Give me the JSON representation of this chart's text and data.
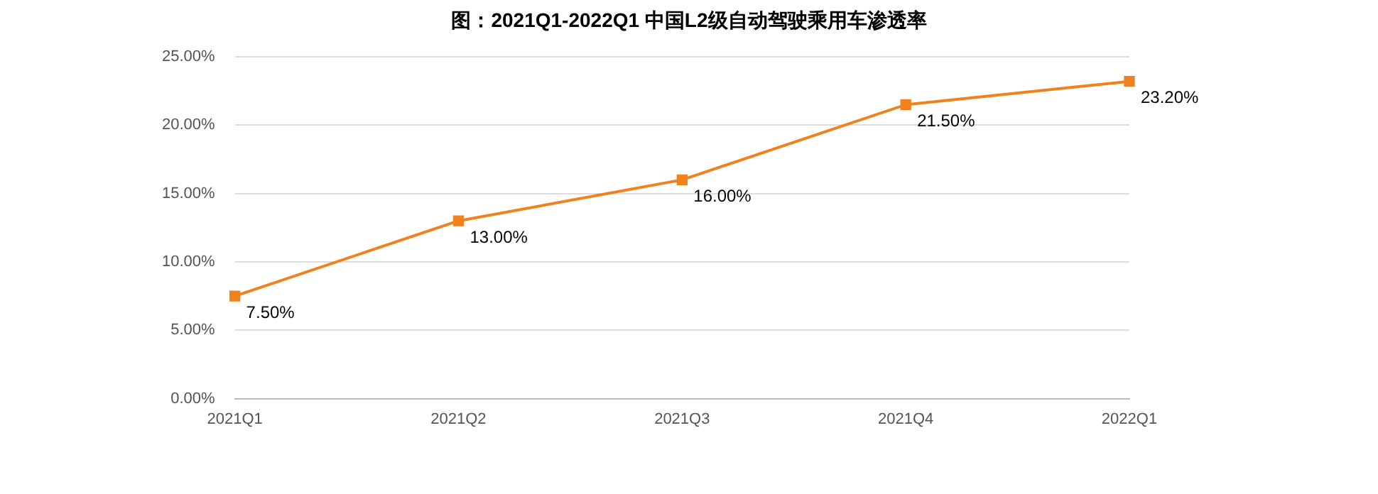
{
  "chart_data": {
    "type": "line",
    "title": "图：2021Q1-2022Q1 中国L2级自动驾驶乘用车渗透率",
    "categories": [
      "2021Q1",
      "2021Q2",
      "2021Q3",
      "2021Q4",
      "2022Q1"
    ],
    "series": [
      {
        "color": "#f0821e",
        "values": [
          7.5,
          13,
          16,
          21.5,
          23.2
        ],
        "value_labels": [
          "7.50%",
          "13.00%",
          "16.00%",
          "21.50%",
          "23.20%"
        ]
      }
    ],
    "ylim": [
      0,
      25
    ],
    "yticks": [
      {
        "value": 0,
        "label": "0.00%"
      },
      {
        "value": 5,
        "label": "5.00%"
      },
      {
        "value": 10,
        "label": "10.00%"
      },
      {
        "value": 15,
        "label": "15.00%"
      },
      {
        "value": 20,
        "label": "20.00%"
      },
      {
        "value": 25,
        "label": "25.00%"
      }
    ],
    "grid": "y",
    "legend": false,
    "marker": "square",
    "line_style": "solid"
  }
}
